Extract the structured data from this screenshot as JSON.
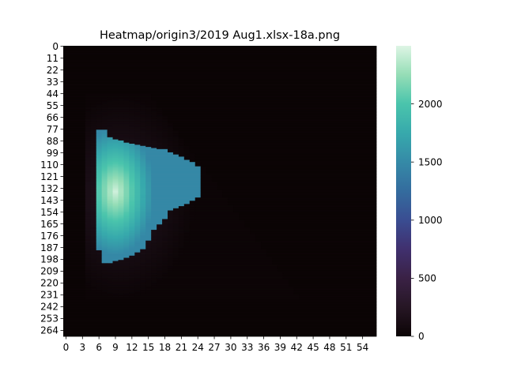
{
  "chart_data": {
    "type": "heatmap",
    "title": "Heatmap/origin3/2019 Aug1.xlsx-18a.png",
    "xlabel": "",
    "ylabel": "",
    "colormap": "mako",
    "grid": false,
    "n_rows": 270,
    "n_cols": 57,
    "x_ticks": [
      0,
      3,
      6,
      9,
      12,
      15,
      18,
      21,
      24,
      27,
      30,
      33,
      36,
      39,
      42,
      45,
      48,
      51,
      54
    ],
    "y_ticks": [
      0,
      11,
      22,
      33,
      44,
      55,
      66,
      77,
      88,
      99,
      110,
      121,
      132,
      143,
      154,
      165,
      176,
      187,
      198,
      209,
      220,
      231,
      242,
      253,
      264
    ],
    "colorbar": {
      "range": [
        0,
        2500
      ],
      "ticks": [
        0,
        500,
        1000,
        1500,
        2000
      ],
      "tick_labels": [
        "0",
        "500",
        "1000",
        "1500",
        "2000"
      ]
    },
    "region_notes": {
      "hot_region": "columns 6-24, rows ~75-200, values ~1500-2500 (peak ~2400 near column 9, row 135)",
      "glow": "faint values ~50-300 surrounding the hot region within a triangle bounded by column 5 and a diagonal from (row 44, column 15) to (row 230, column 42)",
      "background": "~0 elsewhere"
    }
  }
}
